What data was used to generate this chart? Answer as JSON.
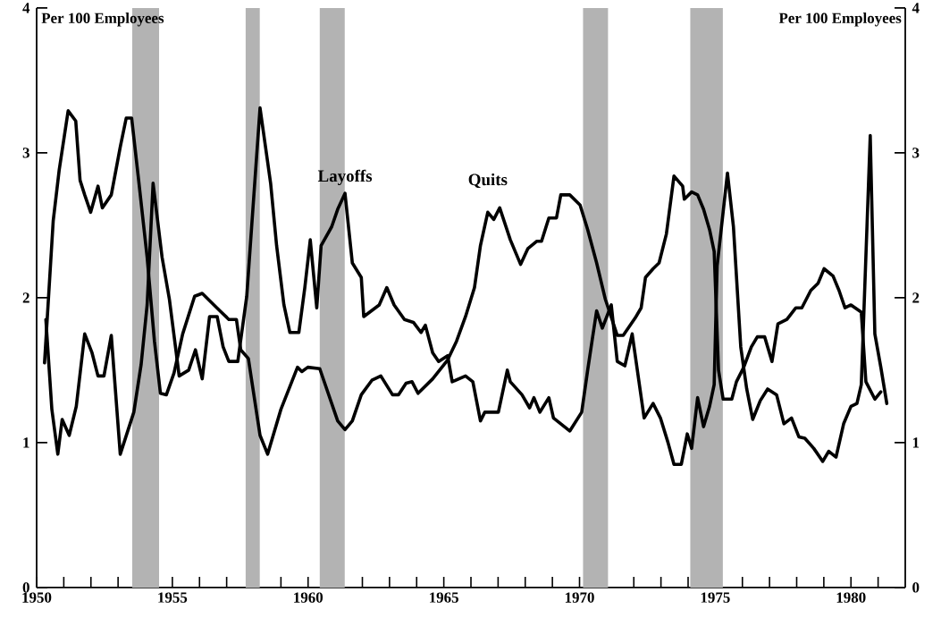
{
  "chart_data": {
    "type": "line",
    "ylabel": "Per 100 Employees",
    "y2label": "Per 100 Employees",
    "xlim": [
      1950,
      1982
    ],
    "xticks": [
      1950,
      {
        "value": 1951,
        "label": null
      },
      {
        "value": 1952,
        "label": null
      },
      {
        "value": 1953,
        "label": null
      },
      {
        "value": 1954,
        "label": null
      },
      1955,
      {
        "value": 1956,
        "label": null
      },
      {
        "value": 1957,
        "label": null
      },
      {
        "value": 1958,
        "label": null
      },
      {
        "value": 1959,
        "label": null
      },
      1960,
      {
        "value": 1961,
        "label": null
      },
      {
        "value": 1962,
        "label": null
      },
      {
        "value": 1963,
        "label": null
      },
      {
        "value": 1964,
        "label": null
      },
      1965,
      {
        "value": 1966,
        "label": null
      },
      {
        "value": 1967,
        "label": null
      },
      {
        "value": 1968,
        "label": null
      },
      {
        "value": 1969,
        "label": null
      },
      1970,
      {
        "value": 1971,
        "label": null
      },
      {
        "value": 1972,
        "label": null
      },
      {
        "value": 1973,
        "label": null
      },
      {
        "value": 1974,
        "label": null
      },
      1975,
      {
        "value": 1976,
        "label": null
      },
      {
        "value": 1977,
        "label": null
      },
      {
        "value": 1978,
        "label": null
      },
      {
        "value": 1979,
        "label": null
      },
      1980,
      {
        "value": 1981,
        "label": null
      }
    ],
    "ylim": [
      0,
      4
    ],
    "yticks": [
      0,
      1,
      2,
      3,
      4
    ],
    "y2lim": [
      0,
      4
    ],
    "y2ticks": [
      0,
      1,
      2,
      3,
      4
    ],
    "line_style": "solid",
    "bands": [
      {
        "axis": "x",
        "from": 1953.52,
        "to": 1954.51,
        "color": "#b3b3b3"
      },
      {
        "axis": "x",
        "from": 1957.7,
        "to": 1958.22,
        "color": "#b3b3b3"
      },
      {
        "axis": "x",
        "from": 1960.43,
        "to": 1961.35,
        "color": "#b3b3b3"
      },
      {
        "axis": "x",
        "from": 1970.13,
        "to": 1971.05,
        "color": "#b3b3b3"
      },
      {
        "axis": "x",
        "from": 1974.08,
        "to": 1975.28,
        "color": "#b3b3b3"
      }
    ],
    "series": [
      {
        "name": "Layoffs",
        "color": "#000000",
        "x": [
          1950.34,
          1950.56,
          1950.78,
          1950.94,
          1951.2,
          1951.46,
          1951.77,
          1952.04,
          1952.26,
          1952.48,
          1952.75,
          1953.08,
          1953.58,
          1953.85,
          1954.07,
          1954.29,
          1954.62,
          1954.89,
          1955.17,
          1955.25,
          1955.6,
          1955.85,
          1956.1,
          1956.37,
          1956.65,
          1956.87,
          1957.08,
          1957.41,
          1957.74,
          1958.23,
          1958.62,
          1958.84,
          1959.11,
          1959.33,
          1959.66,
          1959.88,
          1960.08,
          1960.32,
          1960.48,
          1960.87,
          1961.09,
          1961.36,
          1961.63,
          1961.96,
          1962.05,
          1962.62,
          1962.9,
          1963.17,
          1963.55,
          1963.88,
          1964.16,
          1964.32,
          1964.59,
          1964.81,
          1965.14,
          1965.31,
          1965.8,
          1966.07,
          1966.35,
          1966.51,
          1967.01,
          1967.34,
          1967.45,
          1967.88,
          1968.16,
          1968.32,
          1968.54,
          1968.87,
          1969.04,
          1969.64,
          1970.08,
          1970.3,
          1970.46,
          1970.63,
          1970.84,
          1971.17,
          1971.39,
          1971.67,
          1971.94,
          1972.38,
          1972.71,
          1972.98,
          1973.26,
          1973.48,
          1973.75,
          1973.97,
          1974.13,
          1974.35,
          1974.57,
          1974.79,
          1974.96,
          1975.07,
          1975.45,
          1975.67,
          1975.94,
          1976.16,
          1976.38,
          1976.66,
          1976.93,
          1977.26,
          1977.53,
          1977.81,
          1978.08,
          1978.3,
          1978.63,
          1978.96,
          1979.18,
          1979.45,
          1979.73,
          1980.0,
          1980.22,
          1980.38,
          1980.71,
          1980.88,
          1981.1,
          1981.32
        ],
        "values": [
          1.85,
          1.23,
          0.92,
          1.16,
          1.05,
          1.25,
          1.75,
          1.62,
          1.46,
          1.46,
          1.74,
          0.92,
          1.21,
          1.54,
          1.95,
          2.79,
          2.28,
          1.99,
          1.58,
          1.46,
          1.5,
          1.64,
          1.44,
          1.87,
          1.87,
          1.66,
          1.56,
          1.56,
          2.01,
          3.31,
          2.79,
          2.36,
          1.95,
          1.76,
          1.76,
          2.07,
          2.4,
          1.93,
          2.36,
          2.49,
          2.61,
          2.72,
          2.24,
          2.14,
          1.87,
          1.95,
          2.07,
          1.95,
          1.85,
          1.83,
          1.76,
          1.81,
          1.62,
          1.56,
          1.6,
          1.42,
          1.46,
          1.42,
          1.15,
          1.21,
          1.21,
          1.5,
          1.42,
          1.33,
          1.24,
          1.31,
          1.21,
          1.31,
          1.17,
          1.08,
          1.21,
          1.5,
          1.7,
          1.91,
          1.79,
          1.95,
          1.56,
          1.53,
          1.75,
          1.17,
          1.27,
          1.17,
          1.0,
          0.85,
          0.85,
          1.06,
          0.96,
          1.31,
          1.11,
          1.25,
          1.4,
          2.22,
          2.86,
          2.49,
          1.66,
          1.37,
          1.16,
          1.29,
          1.37,
          1.33,
          1.13,
          1.17,
          1.04,
          1.03,
          0.96,
          0.87,
          0.94,
          0.9,
          1.13,
          1.25,
          1.27,
          1.4,
          3.12,
          1.75,
          1.52,
          1.27
        ]
      },
      {
        "name": "Quits",
        "color": "#000000",
        "x": [
          1950.29,
          1950.61,
          1950.83,
          1951.16,
          1951.44,
          1951.6,
          1951.77,
          1951.99,
          1952.26,
          1952.42,
          1952.75,
          1953.08,
          1953.3,
          1953.5,
          1953.74,
          1954.07,
          1954.34,
          1954.56,
          1954.78,
          1955.06,
          1955.38,
          1955.82,
          1956.1,
          1956.75,
          1957.08,
          1957.36,
          1957.52,
          1957.8,
          1958.23,
          1958.51,
          1959.0,
          1959.61,
          1959.77,
          1959.99,
          1960.43,
          1960.76,
          1961.09,
          1961.36,
          1961.63,
          1961.96,
          1962.35,
          1962.68,
          1963.11,
          1963.33,
          1963.61,
          1963.83,
          1964.05,
          1964.59,
          1965.14,
          1965.47,
          1965.8,
          1966.13,
          1966.35,
          1966.62,
          1966.84,
          1967.06,
          1967.45,
          1967.83,
          1968.1,
          1968.43,
          1968.6,
          1968.87,
          1969.15,
          1969.31,
          1969.64,
          1970.02,
          1970.3,
          1970.63,
          1970.95,
          1971.39,
          1971.61,
          1972.05,
          1972.27,
          1972.43,
          1972.71,
          1972.93,
          1973.2,
          1973.48,
          1973.8,
          1973.86,
          1974.13,
          1974.35,
          1974.57,
          1974.79,
          1974.96,
          1975.12,
          1975.29,
          1975.61,
          1975.78,
          1976.05,
          1976.33,
          1976.55,
          1976.82,
          1977.09,
          1977.31,
          1977.64,
          1977.97,
          1978.19,
          1978.52,
          1978.79,
          1979.01,
          1979.34,
          1979.56,
          1979.78,
          1980.0,
          1980.38,
          1980.55,
          1980.88,
          1981.1
        ],
        "values": [
          1.55,
          2.53,
          2.88,
          3.29,
          3.22,
          2.81,
          2.71,
          2.59,
          2.77,
          2.62,
          2.71,
          3.04,
          3.24,
          3.24,
          2.84,
          2.28,
          1.7,
          1.34,
          1.33,
          1.48,
          1.75,
          2.01,
          2.03,
          1.91,
          1.85,
          1.85,
          1.64,
          1.58,
          1.05,
          0.92,
          1.23,
          1.52,
          1.49,
          1.52,
          1.51,
          1.33,
          1.15,
          1.09,
          1.15,
          1.33,
          1.43,
          1.46,
          1.33,
          1.33,
          1.41,
          1.42,
          1.34,
          1.44,
          1.57,
          1.7,
          1.87,
          2.07,
          2.36,
          2.59,
          2.54,
          2.62,
          2.4,
          2.23,
          2.34,
          2.39,
          2.39,
          2.55,
          2.55,
          2.71,
          2.71,
          2.64,
          2.47,
          2.24,
          1.99,
          1.74,
          1.74,
          1.86,
          1.93,
          2.14,
          2.2,
          2.24,
          2.44,
          2.84,
          2.77,
          2.68,
          2.73,
          2.71,
          2.61,
          2.47,
          2.32,
          1.5,
          1.3,
          1.3,
          1.42,
          1.52,
          1.66,
          1.73,
          1.73,
          1.56,
          1.82,
          1.85,
          1.93,
          1.93,
          2.05,
          2.1,
          2.2,
          2.15,
          2.05,
          1.93,
          1.95,
          1.9,
          1.42,
          1.3,
          1.35
        ]
      }
    ]
  }
}
